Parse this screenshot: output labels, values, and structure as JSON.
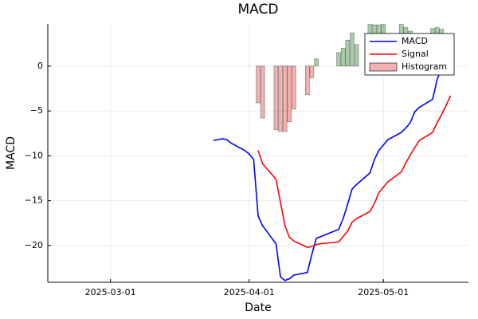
{
  "chart_data": {
    "type": "line",
    "title": "MACD",
    "x_label": "Date",
    "y_label": "MACD",
    "x": [
      "2025-03-24",
      "2025-03-25",
      "2025-03-26",
      "2025-03-27",
      "2025-03-28",
      "2025-03-31",
      "2025-04-01",
      "2025-04-02",
      "2025-04-03",
      "2025-04-04",
      "2025-04-07",
      "2025-04-08",
      "2025-04-09",
      "2025-04-10",
      "2025-04-11",
      "2025-04-14",
      "2025-04-15",
      "2025-04-16",
      "2025-04-17",
      "2025-04-21",
      "2025-04-22",
      "2025-04-23",
      "2025-04-24",
      "2025-04-25",
      "2025-04-28",
      "2025-04-29",
      "2025-04-30",
      "2025-05-01",
      "2025-05-02",
      "2025-05-05",
      "2025-05-06",
      "2025-05-07",
      "2025-05-08",
      "2025-05-09",
      "2025-05-12",
      "2025-05-13",
      "2025-05-14",
      "2025-05-15",
      "2025-05-16"
    ],
    "series": [
      {
        "name": "MACD",
        "color": "#0000ff",
        "kind": "line",
        "values": [
          -8.3,
          -8.2,
          -8.1,
          -8.2,
          -8.6,
          -9.4,
          -9.8,
          -10.4,
          -16.7,
          -17.8,
          -19.8,
          -23.5,
          -23.9,
          -23.7,
          -23.3,
          -23.0,
          -21.0,
          -19.2,
          -19.0,
          -18.2,
          -17.0,
          -15.4,
          -13.7,
          -13.2,
          -11.9,
          -10.4,
          -9.4,
          -8.8,
          -8.2,
          -7.4,
          -6.9,
          -6.3,
          -5.1,
          -4.6,
          -3.7,
          -1.5,
          -0.2,
          0.8,
          1.6
        ]
      },
      {
        "name": "Signal",
        "color": "#ff0000",
        "kind": "line",
        "values": [
          null,
          null,
          null,
          null,
          null,
          null,
          null,
          null,
          -9.4,
          -10.9,
          -12.6,
          -15.2,
          -17.8,
          -19.1,
          -19.5,
          -20.2,
          -20.1,
          -19.9,
          -19.8,
          -19.6,
          -19.0,
          -18.4,
          -17.4,
          -17.0,
          -16.2,
          -15.3,
          -14.1,
          -13.5,
          -12.9,
          -11.8,
          -10.8,
          -9.9,
          -9.1,
          -8.3,
          -7.4,
          -6.3,
          -5.4,
          -4.4,
          -3.3
        ]
      },
      {
        "name": "Histogram",
        "color": "#f4b0b0",
        "positive_color": "#a8cca8",
        "kind": "bar",
        "values": [
          null,
          null,
          null,
          null,
          null,
          null,
          null,
          null,
          -4.1,
          -5.8,
          -7.1,
          -7.3,
          -7.3,
          -6.2,
          -4.8,
          -3.2,
          -1.3,
          0.8,
          null,
          1.5,
          2.0,
          2.9,
          3.7,
          2.4,
          4.7,
          4.6,
          4.6,
          4.7,
          null,
          4.7,
          4.3,
          3.9,
          null,
          null,
          4.2,
          4.3,
          4.1,
          null,
          null
        ]
      }
    ],
    "xlim": [
      "2025-02-15",
      "2025-05-20"
    ],
    "xticks": [
      "2025-03-01",
      "2025-04-01",
      "2025-05-01"
    ],
    "ylim": [
      -24.1,
      4.7
    ],
    "yticks": [
      {
        "value": -20,
        "label": "−20"
      },
      {
        "value": -15,
        "label": "−15"
      },
      {
        "value": -10,
        "label": "−10"
      },
      {
        "value": -5,
        "label": "−5"
      },
      0
    ],
    "grid": true,
    "legend": "top-right"
  }
}
